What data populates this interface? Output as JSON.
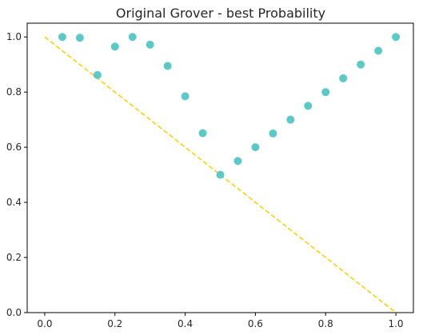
{
  "chart_data": {
    "type": "scatter",
    "title": "Original Grover - best Probability",
    "xlabel": "",
    "ylabel": "",
    "xlim": [
      -0.05,
      1.05
    ],
    "ylim": [
      0.0,
      1.05
    ],
    "xticks": [
      "0.0",
      "0.2",
      "0.4",
      "0.6",
      "0.8",
      "1.0"
    ],
    "yticks": [
      "0.0",
      "0.2",
      "0.4",
      "0.6",
      "0.8",
      "1.0"
    ],
    "grid": false,
    "series": [
      {
        "type": "scatter",
        "color": "#5bc9c6",
        "x": [
          0.05,
          0.1,
          0.15,
          0.2,
          0.25,
          0.3,
          0.35,
          0.4,
          0.45,
          0.5,
          0.55,
          0.6,
          0.65,
          0.7,
          0.75,
          0.8,
          0.85,
          0.9,
          0.95,
          1.0
        ],
        "y": [
          1.0,
          0.997,
          0.862,
          0.965,
          1.0,
          0.972,
          0.895,
          0.785,
          0.651,
          0.5,
          0.55,
          0.6,
          0.65,
          0.7,
          0.75,
          0.8,
          0.85,
          0.9,
          0.95,
          1.0
        ]
      },
      {
        "type": "line",
        "style": "dashed",
        "color": "#ffcc00",
        "x": [
          0.0,
          1.0
        ],
        "y": [
          1.0,
          0.0
        ]
      }
    ]
  }
}
